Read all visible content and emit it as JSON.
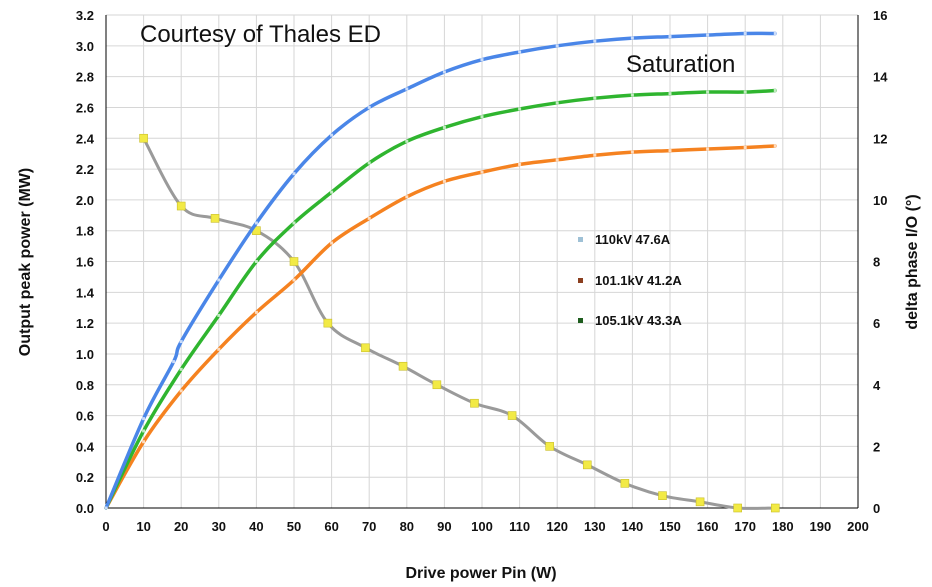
{
  "chart_data": {
    "type": "line",
    "annotations": [
      "Courtesy of Thales ED",
      "Saturation"
    ],
    "xlabel": "Drive power Pin (W)",
    "ylabel": "Output peak power  (MW)",
    "y2label": "delta phase I/O (°)",
    "xlim": [
      0,
      200
    ],
    "ylim": [
      0,
      3.2
    ],
    "y2lim": [
      0,
      16
    ],
    "grid": true,
    "legend_position": "center-right",
    "x_ticks": [
      "0",
      "10",
      "20",
      "30",
      "40",
      "50",
      "60",
      "70",
      "80",
      "90",
      "100",
      "110",
      "120",
      "130",
      "140",
      "150",
      "160",
      "170",
      "180",
      "190",
      "200"
    ],
    "y_ticks": [
      "0.0",
      "0.2",
      "0.4",
      "0.6",
      "0.8",
      "1.0",
      "1.2",
      "1.4",
      "1.6",
      "1.8",
      "2.0",
      "2.2",
      "2.4",
      "2.6",
      "2.8",
      "3.0",
      "3.2"
    ],
    "y2_ticks": [
      "0",
      "2",
      "4",
      "6",
      "8",
      "10",
      "12",
      "14",
      "16"
    ],
    "series": [
      {
        "name": "110kV 47.6A",
        "color": "#4a86e8",
        "axis": "left",
        "x": [
          0,
          10,
          18,
          20,
          30,
          40,
          50,
          60,
          70,
          80,
          90,
          100,
          110,
          120,
          130,
          140,
          150,
          160,
          170,
          178
        ],
        "y": [
          0,
          0.58,
          0.95,
          1.08,
          1.48,
          1.85,
          2.17,
          2.42,
          2.6,
          2.72,
          2.83,
          2.91,
          2.96,
          3.0,
          3.03,
          3.05,
          3.06,
          3.07,
          3.08,
          3.08
        ]
      },
      {
        "name": "101.1kV 41.2A",
        "color": "#f58220",
        "axis": "left",
        "x": [
          0,
          10,
          20,
          30,
          40,
          50,
          60,
          70,
          80,
          90,
          100,
          110,
          120,
          130,
          140,
          150,
          160,
          170,
          178
        ],
        "y": [
          0,
          0.43,
          0.76,
          1.03,
          1.27,
          1.48,
          1.72,
          1.88,
          2.02,
          2.12,
          2.18,
          2.23,
          2.26,
          2.29,
          2.31,
          2.32,
          2.33,
          2.34,
          2.35
        ]
      },
      {
        "name": "105.1kV 43.3A",
        "color": "#2fb52f",
        "axis": "left",
        "x": [
          0,
          10,
          20,
          30,
          40,
          50,
          60,
          70,
          80,
          90,
          100,
          110,
          120,
          130,
          140,
          150,
          160,
          170,
          178
        ],
        "y": [
          0,
          0.5,
          0.9,
          1.25,
          1.6,
          1.85,
          2.05,
          2.24,
          2.38,
          2.47,
          2.54,
          2.59,
          2.63,
          2.66,
          2.68,
          2.69,
          2.7,
          2.7,
          2.71
        ]
      },
      {
        "name": "",
        "color": "#9a9a9a",
        "marker_color": "#f2ea45",
        "axis": "right",
        "x": [
          10,
          20,
          29,
          40,
          50,
          59,
          69,
          79,
          88,
          98,
          108,
          118,
          128,
          138,
          148,
          158,
          168,
          178
        ],
        "y": [
          12.0,
          9.8,
          9.4,
          9.0,
          8.0,
          6.0,
          5.2,
          4.6,
          4.0,
          3.4,
          3.0,
          2.0,
          1.4,
          0.8,
          0.4,
          0.2,
          0.0,
          0.0
        ]
      }
    ]
  }
}
